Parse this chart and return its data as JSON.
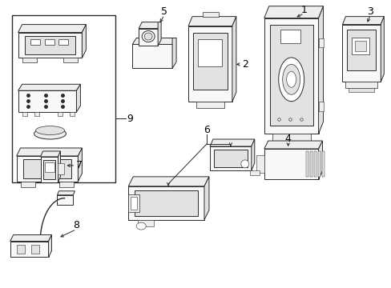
{
  "bg_color": "#ffffff",
  "fig_width": 4.89,
  "fig_height": 3.6,
  "dpi": 100,
  "lc": "#2a2a2a",
  "tc": "#000000",
  "lw": 0.7
}
